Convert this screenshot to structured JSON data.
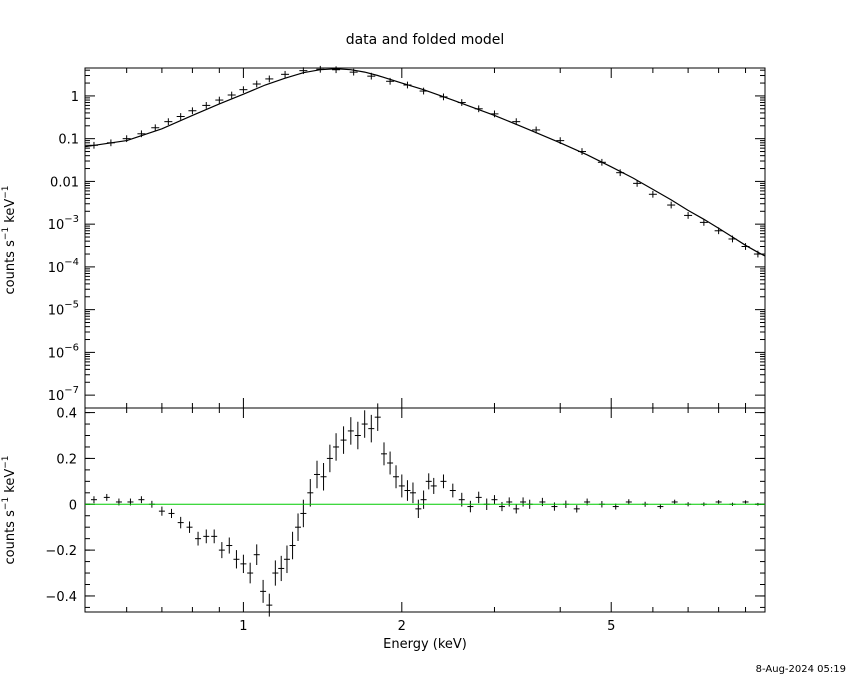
{
  "timestamp": "8-Aug-2024 05:19",
  "chart_data": [
    {
      "type": "scatter",
      "panel": "top",
      "title": "data and folded model",
      "xlabel": "Energy (keV)",
      "ylabel": "counts s",
      "ylabel_sup1": "−1",
      "ylabel_mid": " keV",
      "ylabel_sup2": "−1",
      "x_scale": "log",
      "y_scale": "log",
      "xlim": [
        0.5,
        9.8
      ],
      "ylim": [
        5e-08,
        4.5
      ],
      "yticks": [
        {
          "v": 1,
          "label": "1"
        },
        {
          "v": 0.1,
          "label": "0.1"
        },
        {
          "v": 0.01,
          "label": "0.01"
        },
        {
          "v": 0.001,
          "base": "10",
          "exp": "−3"
        },
        {
          "v": 0.0001,
          "base": "10",
          "exp": "−4"
        },
        {
          "v": 1e-05,
          "base": "10",
          "exp": "−5"
        },
        {
          "v": 1e-06,
          "base": "10",
          "exp": "−6"
        },
        {
          "v": 1e-07,
          "base": "10",
          "exp": "−7"
        }
      ],
      "series": [
        {
          "role": "data",
          "x": [
            0.52,
            0.56,
            0.6,
            0.64,
            0.68,
            0.72,
            0.76,
            0.8,
            0.85,
            0.9,
            0.95,
            1.0,
            1.06,
            1.12,
            1.2,
            1.3,
            1.4,
            1.5,
            1.62,
            1.75,
            1.9,
            2.05,
            2.2,
            2.4,
            2.6,
            2.8,
            3.0,
            3.3,
            3.6,
            4.0,
            4.4,
            4.8,
            5.2,
            5.6,
            6.0,
            6.5,
            7.0,
            7.5,
            8.0,
            8.5,
            9.0,
            9.5
          ],
          "y": [
            0.07,
            0.08,
            0.1,
            0.13,
            0.18,
            0.25,
            0.33,
            0.45,
            0.6,
            0.8,
            1.05,
            1.4,
            1.9,
            2.5,
            3.2,
            3.9,
            4.2,
            4.1,
            3.6,
            2.9,
            2.2,
            1.8,
            1.3,
            0.95,
            0.7,
            0.5,
            0.38,
            0.25,
            0.16,
            0.09,
            0.05,
            0.028,
            0.016,
            0.009,
            0.005,
            0.0028,
            0.0016,
            0.0011,
            0.0007,
            0.00045,
            0.0003,
            0.0002
          ]
        },
        {
          "role": "model",
          "x": [
            0.5,
            0.6,
            0.7,
            0.8,
            0.9,
            1.0,
            1.1,
            1.2,
            1.3,
            1.4,
            1.5,
            1.6,
            1.7,
            1.8,
            2.0,
            2.2,
            2.5,
            3.0,
            3.5,
            4.0,
            4.5,
            5.0,
            5.5,
            6.0,
            6.5,
            7.0,
            7.5,
            8.0,
            8.5,
            9.0,
            9.5,
            9.8
          ],
          "y": [
            0.065,
            0.09,
            0.17,
            0.35,
            0.65,
            1.1,
            1.8,
            2.6,
            3.5,
            4.1,
            4.3,
            4.1,
            3.6,
            3.0,
            2.0,
            1.4,
            0.8,
            0.35,
            0.16,
            0.08,
            0.042,
            0.022,
            0.012,
            0.0065,
            0.0037,
            0.0021,
            0.0013,
            0.0008,
            0.0005,
            0.00032,
            0.00022,
            0.00018
          ]
        }
      ]
    },
    {
      "type": "scatter",
      "panel": "bottom",
      "xlabel": "Energy (keV)",
      "ylabel": "counts s",
      "ylabel_sup1": "−1",
      "ylabel_mid": " keV",
      "ylabel_sup2": "−1",
      "x_scale": "log",
      "xlim": [
        0.5,
        9.8
      ],
      "ylim": [
        -0.47,
        0.42
      ],
      "xticks": [
        {
          "v": 1,
          "label": "1"
        },
        {
          "v": 2,
          "label": "2"
        },
        {
          "v": 5,
          "label": "5"
        }
      ],
      "yticks": [
        {
          "v": 0.4,
          "label": "0.4"
        },
        {
          "v": 0.2,
          "label": "0.2"
        },
        {
          "v": 0,
          "label": "0"
        },
        {
          "v": -0.2,
          "label": "−0.2"
        },
        {
          "v": -0.4,
          "label": "−0.4"
        }
      ],
      "zero_line_color": "#00cc00",
      "series": [
        {
          "role": "residuals",
          "x": [
            0.52,
            0.55,
            0.58,
            0.61,
            0.64,
            0.67,
            0.7,
            0.73,
            0.76,
            0.79,
            0.82,
            0.85,
            0.88,
            0.91,
            0.94,
            0.97,
            1.0,
            1.03,
            1.06,
            1.09,
            1.12,
            1.15,
            1.18,
            1.21,
            1.24,
            1.27,
            1.3,
            1.34,
            1.38,
            1.42,
            1.46,
            1.5,
            1.55,
            1.6,
            1.65,
            1.7,
            1.75,
            1.8,
            1.85,
            1.9,
            1.95,
            2.0,
            2.05,
            2.1,
            2.15,
            2.2,
            2.25,
            2.3,
            2.4,
            2.5,
            2.6,
            2.7,
            2.8,
            2.9,
            3.0,
            3.1,
            3.2,
            3.3,
            3.4,
            3.5,
            3.7,
            3.9,
            4.1,
            4.3,
            4.5,
            4.8,
            5.1,
            5.4,
            5.8,
            6.2,
            6.6,
            7.0,
            7.5,
            8.0,
            8.5,
            9.0,
            9.5
          ],
          "y": [
            0.02,
            0.03,
            0.01,
            0.01,
            0.02,
            0.0,
            -0.03,
            -0.04,
            -0.08,
            -0.1,
            -0.15,
            -0.14,
            -0.14,
            -0.2,
            -0.18,
            -0.24,
            -0.26,
            -0.3,
            -0.22,
            -0.38,
            -0.44,
            -0.3,
            -0.28,
            -0.24,
            -0.18,
            -0.1,
            -0.04,
            0.05,
            0.13,
            0.12,
            0.2,
            0.25,
            0.28,
            0.32,
            0.3,
            0.35,
            0.33,
            0.38,
            0.22,
            0.18,
            0.12,
            0.08,
            0.06,
            0.05,
            -0.02,
            0.02,
            0.1,
            0.08,
            0.1,
            0.06,
            0.02,
            -0.01,
            0.03,
            0.0,
            0.02,
            -0.01,
            0.01,
            -0.02,
            0.01,
            0.0,
            0.01,
            -0.01,
            0.0,
            -0.02,
            0.01,
            0.0,
            -0.01,
            0.01,
            0.0,
            -0.01,
            0.01,
            0.0,
            0.0,
            0.01,
            0.0,
            0.01,
            0.0
          ],
          "err": [
            0.015,
            0.015,
            0.015,
            0.015,
            0.015,
            0.015,
            0.02,
            0.02,
            0.025,
            0.025,
            0.03,
            0.03,
            0.03,
            0.035,
            0.035,
            0.04,
            0.04,
            0.045,
            0.045,
            0.05,
            0.05,
            0.055,
            0.055,
            0.06,
            0.06,
            0.06,
            0.06,
            0.06,
            0.06,
            0.06,
            0.06,
            0.06,
            0.06,
            0.06,
            0.06,
            0.06,
            0.06,
            0.06,
            0.05,
            0.05,
            0.05,
            0.05,
            0.045,
            0.045,
            0.04,
            0.04,
            0.035,
            0.035,
            0.03,
            0.03,
            0.03,
            0.025,
            0.025,
            0.025,
            0.02,
            0.02,
            0.02,
            0.02,
            0.02,
            0.02,
            0.018,
            0.018,
            0.016,
            0.016,
            0.015,
            0.014,
            0.013,
            0.012,
            0.011,
            0.01,
            0.01,
            0.009,
            0.008,
            0.008,
            0.007,
            0.007,
            0.006
          ]
        }
      ]
    }
  ]
}
